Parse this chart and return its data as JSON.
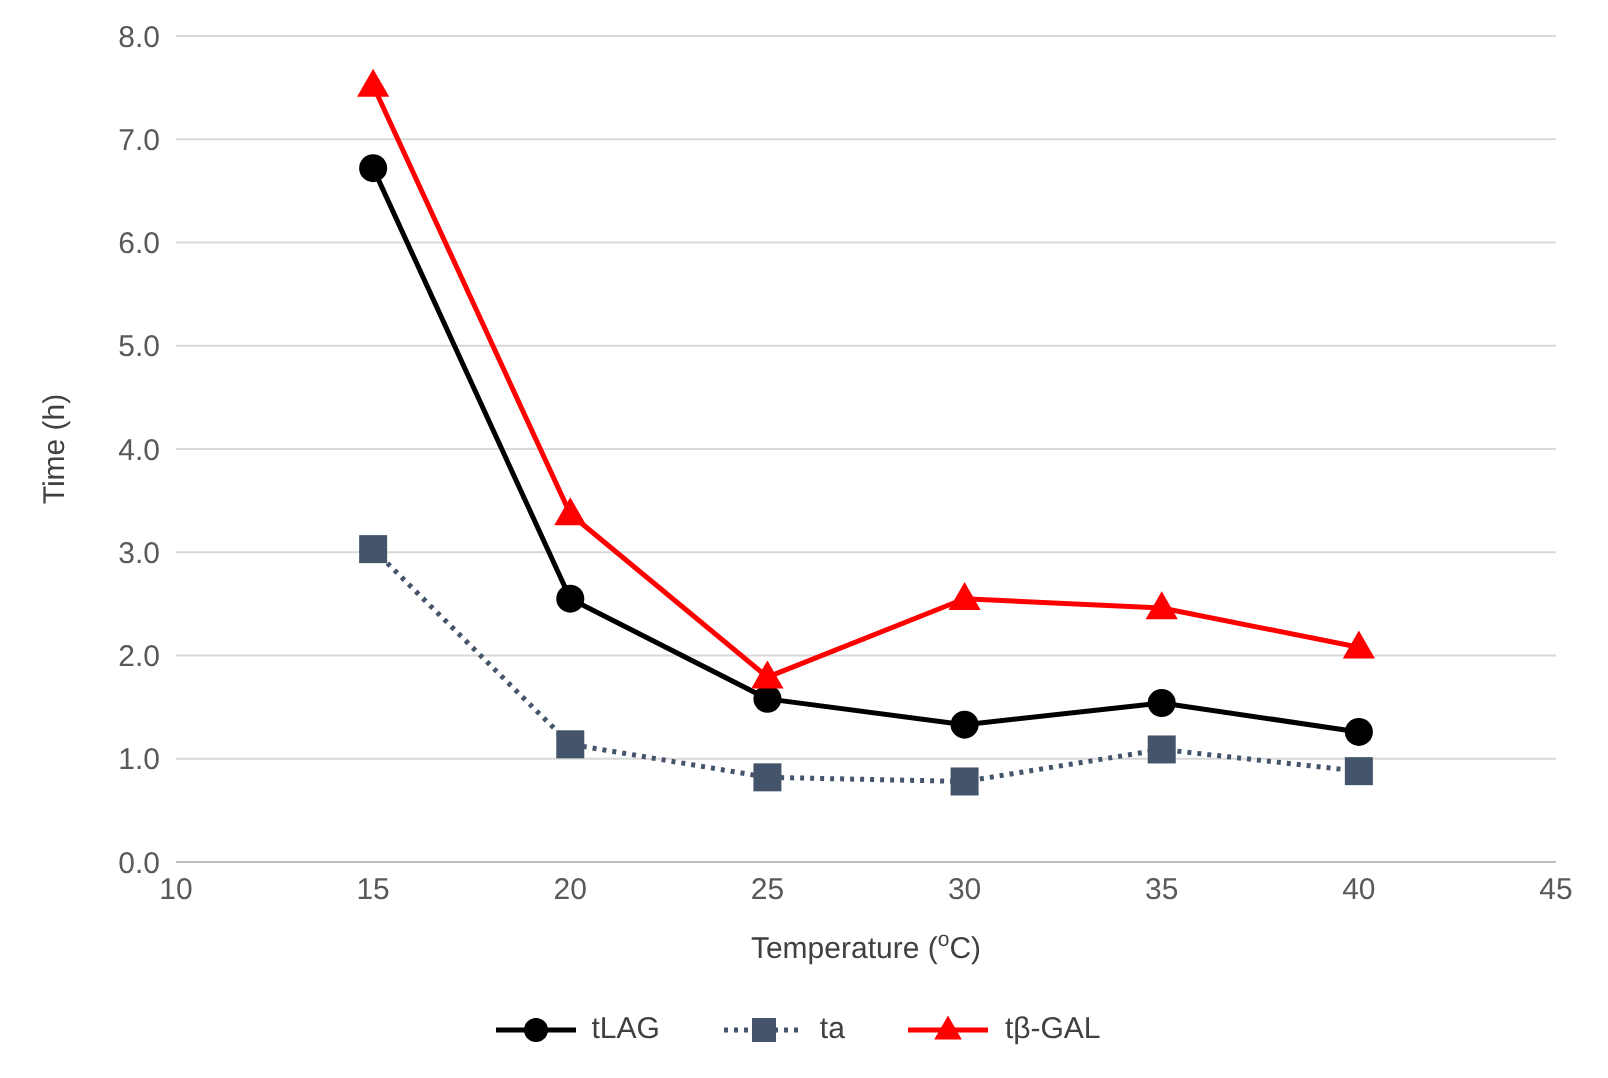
{
  "chart_data": {
    "type": "line",
    "xlabel": "Temperature ($^{o}$C)",
    "ylabel": "Time (h)",
    "x": [
      15,
      20,
      25,
      30,
      35,
      40
    ],
    "series": [
      {
        "name": "tLAG",
        "color": "#000000",
        "values": [
          6.72,
          2.55,
          1.58,
          1.33,
          1.54,
          1.26
        ],
        "marker": "circle",
        "line_style": "solid"
      },
      {
        "name": "ta",
        "color": "#44546a",
        "values": [
          3.03,
          1.14,
          0.82,
          0.78,
          1.09,
          0.88
        ],
        "marker": "square",
        "line_style": "dotted"
      },
      {
        "name": "tβ-GAL",
        "color": "#ff0000",
        "values": [
          7.52,
          3.37,
          1.79,
          2.55,
          2.46,
          2.08
        ],
        "marker": "triangle",
        "line_style": "solid"
      }
    ],
    "xlim": [
      10,
      45
    ],
    "xticks": [
      10,
      15,
      20,
      25,
      30,
      35,
      40,
      45
    ],
    "ylim": [
      0,
      8
    ],
    "yticks": [
      {
        "value": 0,
        "label": "0.0"
      },
      {
        "value": 1,
        "label": "1.0"
      },
      {
        "value": 2,
        "label": "2.0"
      },
      {
        "value": 3,
        "label": "3.0"
      },
      {
        "value": 4,
        "label": "4.0"
      },
      {
        "value": 5,
        "label": "5.0"
      },
      {
        "value": 6,
        "label": "6.0"
      },
      {
        "value": 7,
        "label": "7.0"
      },
      {
        "value": 8,
        "label": "8.0"
      }
    ],
    "grid": "y",
    "legend": "bottom"
  }
}
